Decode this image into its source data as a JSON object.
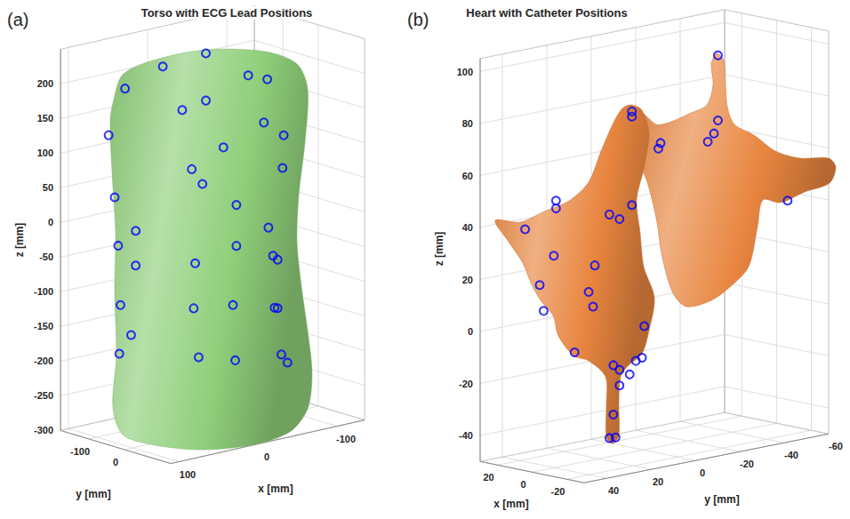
{
  "chart_data": [
    {
      "type": "scatter3d",
      "panel_label": "(a)",
      "title": "Torso with ECG Lead Positions",
      "xlabel": "x [mm]",
      "ylabel": "y [mm]",
      "zlabel": "z [mm]",
      "xlim": [
        -135,
        110
      ],
      "ylim": [
        -180,
        130
      ],
      "zlim": [
        -300,
        250
      ],
      "xticks": [
        -100,
        0,
        100
      ],
      "yticks": [
        -100,
        0
      ],
      "zticks": [
        -300,
        -250,
        -200,
        -150,
        -100,
        -50,
        0,
        50,
        100,
        150,
        200
      ],
      "grid": true,
      "series": [
        {
          "type": "surface",
          "color": "#8fcf7a"
        },
        {
          "type": "scatter",
          "marker": "open_circle",
          "color": "#0000ff",
          "x": [
            41,
            5,
            -31,
            -47,
            73,
            87,
            25,
            5,
            -44,
            -61,
            -10,
            -60,
            17,
            8,
            82,
            -21,
            64,
            -48,
            79,
            64,
            -21,
            -52,
            -56,
            14,
            77,
            15,
            -18,
            -53,
            -56,
            68,
            78,
            11,
            -20,
            -59,
            -64
          ],
          "y": [
            -46,
            -5,
            34,
            52,
            -81,
            -96,
            -27,
            -5,
            49,
            67,
            11,
            66,
            -18,
            -8,
            -90,
            23,
            -71,
            53,
            -87,
            -71,
            23,
            57,
            61,
            -15,
            -85,
            -17,
            20,
            59,
            61,
            -75,
            -86,
            -12,
            22,
            65,
            71
          ],
          "z": [
            228,
            244,
            209,
            202,
            199,
            133,
            164,
            176,
            140,
            120,
            107,
            73,
            78,
            56,
            43,
            23,
            -7,
            -12,
            -27,
            -57,
            -36,
            -53,
            -59,
            -58,
            -113,
            -123,
            -121,
            -128,
            -129,
            -157,
            -183,
            -194,
            -201,
            -196,
            -208
          ]
        }
      ]
    },
    {
      "type": "scatter3d",
      "panel_label": "(b)",
      "title": "Heart with Catheter Positions",
      "xlabel": "x [mm]",
      "ylabel": "y [mm]",
      "zlabel": "z [mm]",
      "xlim": [
        -30,
        30
      ],
      "ylim": [
        -60,
        50
      ],
      "zlim": [
        -50,
        105
      ],
      "xticks": [
        -20,
        0,
        20
      ],
      "yticks": [
        -60,
        -40,
        -20,
        0,
        20,
        40
      ],
      "zticks": [
        -40,
        -20,
        0,
        20,
        40,
        60,
        80,
        100
      ],
      "grid": true,
      "series": [
        {
          "type": "surface",
          "color": "#e8853f"
        },
        {
          "type": "scatter",
          "marker": "open_circle",
          "color": "#0000ff",
          "x": [
            -11,
            -11,
            -10,
            -9,
            -1,
            -1,
            4,
            4,
            17,
            17,
            8,
            6,
            4,
            22,
            17,
            10,
            20,
            11,
            11,
            19,
            2,
            14,
            7,
            6,
            3,
            2,
            6,
            4,
            7,
            8,
            7,
            -23
          ],
          "y": [
            -25,
            -25,
            -24,
            -22,
            -7,
            -6,
            2,
            2,
            26,
            26,
            9,
            6,
            2,
            36,
            27,
            14,
            31,
            16,
            14,
            30,
            -2,
            20,
            8,
            6,
            1,
            -1,
            6,
            3,
            8,
            9,
            7,
            -47
          ],
          "z": [
            99,
            74,
            69,
            66,
            67,
            65,
            80,
            78,
            48,
            45,
            41,
            39,
            44,
            38,
            27,
            22,
            16,
            12,
            6,
            6,
            -3,
            -11,
            -17,
            -19,
            -16,
            -15,
            -25,
            -21,
            -36,
            -45,
            -45,
            41
          ]
        }
      ]
    }
  ]
}
